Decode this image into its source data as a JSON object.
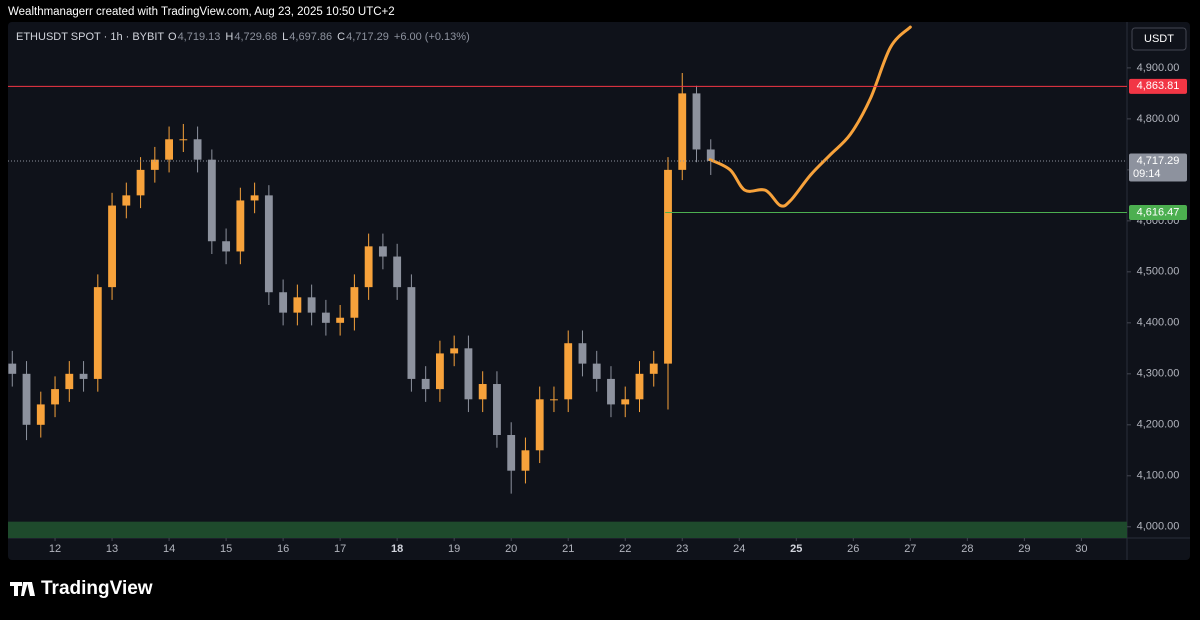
{
  "header": {
    "credit": "Wealthmanagerr created with TradingView.com, Aug 23, 2025 10:50 UTC+2"
  },
  "legend": {
    "symbol": "ETHUSDT SPOT · 1h · BYBIT",
    "ohlc": [
      {
        "key": "O",
        "value": "4,719.13"
      },
      {
        "key": "H",
        "value": "4,729.68"
      },
      {
        "key": "L",
        "value": "4,697.86"
      },
      {
        "key": "C",
        "value": "4,717.29"
      }
    ],
    "change": "+6.00 (+0.13%)"
  },
  "currency_button": "USDT",
  "logo": "TradingView",
  "chart_data": {
    "type": "candlestick",
    "up_color": "#f7a23b",
    "down_color": "#8d929e",
    "x": [
      11.25,
      11.5,
      11.75,
      12,
      12.25,
      12.5,
      12.75,
      13,
      13.25,
      13.5,
      13.75,
      14,
      14.25,
      14.5,
      14.75,
      15,
      15.25,
      15.5,
      15.75,
      16,
      16.25,
      16.5,
      16.75,
      17,
      17.25,
      17.5,
      17.75,
      18,
      18.25,
      18.5,
      18.75,
      19,
      19.25,
      19.5,
      19.75,
      20,
      20.25,
      20.5,
      20.75,
      21,
      21.25,
      21.5,
      21.75,
      22,
      22.25,
      22.5,
      22.75,
      23,
      23.25,
      23.5
    ],
    "open": [
      4320,
      4300,
      4200,
      4240,
      4270,
      4300,
      4290,
      4470,
      4630,
      4650,
      4700,
      4720,
      4760,
      4760,
      4720,
      4560,
      4540,
      4640,
      4650,
      4460,
      4420,
      4450,
      4420,
      4400,
      4410,
      4470,
      4550,
      4530,
      4470,
      4290,
      4270,
      4340,
      4350,
      4250,
      4280,
      4180,
      4110,
      4150,
      4250,
      4250,
      4360,
      4320,
      4290,
      4240,
      4250,
      4300,
      4320,
      4700,
      4850,
      4740
    ],
    "high": [
      4345,
      4325,
      4265,
      4295,
      4325,
      4325,
      4495,
      4655,
      4675,
      4725,
      4745,
      4785,
      4790,
      4785,
      4740,
      4585,
      4665,
      4675,
      4670,
      4485,
      4475,
      4475,
      4445,
      4435,
      4495,
      4575,
      4575,
      4555,
      4495,
      4315,
      4365,
      4375,
      4375,
      4305,
      4305,
      4205,
      4175,
      4275,
      4275,
      4385,
      4385,
      4345,
      4315,
      4275,
      4325,
      4345,
      4725,
      4890,
      4865,
      4760
    ],
    "low": [
      4275,
      4170,
      4175,
      4215,
      4245,
      4265,
      4265,
      4445,
      4605,
      4625,
      4675,
      4695,
      4735,
      4695,
      4535,
      4515,
      4515,
      4615,
      4435,
      4395,
      4395,
      4395,
      4375,
      4375,
      4385,
      4445,
      4505,
      4445,
      4265,
      4245,
      4245,
      4315,
      4225,
      4225,
      4155,
      4065,
      4085,
      4125,
      4225,
      4225,
      4295,
      4265,
      4215,
      4215,
      4225,
      4275,
      4230,
      4680,
      4715,
      4690
    ],
    "close": [
      4300,
      4200,
      4240,
      4270,
      4300,
      4290,
      4470,
      4630,
      4650,
      4700,
      4720,
      4760,
      4760,
      4720,
      4560,
      4540,
      4640,
      4650,
      4460,
      4420,
      4450,
      4420,
      4400,
      4410,
      4470,
      4550,
      4530,
      4470,
      4290,
      4270,
      4340,
      4350,
      4250,
      4280,
      4180,
      4110,
      4150,
      4250,
      4250,
      4360,
      4320,
      4290,
      4240,
      4250,
      4300,
      4320,
      4700,
      4850,
      4740,
      4717.29
    ],
    "forecast": {
      "color": "#f7a23b",
      "x": [
        23.49,
        23.84,
        24.1,
        24.46,
        24.72,
        24.9,
        25.25,
        25.6,
        25.95,
        26.3,
        26.65,
        27.0
      ],
      "values": [
        4720,
        4700,
        4660,
        4660,
        4630,
        4640,
        4690,
        4730,
        4770,
        4840,
        4940,
        4980
      ]
    },
    "levels": [
      {
        "value": 4863.81,
        "label": "4,863.81",
        "color": "#f23645",
        "from": 11.175,
        "style": "solid"
      },
      {
        "value": 4717.29,
        "label": "4,717.29",
        "color": "#8d929e",
        "from": 11.175,
        "style": "dotted",
        "countdown": "09:14"
      },
      {
        "value": 4616.47,
        "label": "4,616.47",
        "color": "#4caf50",
        "from": 22.7,
        "style": "solid"
      }
    ],
    "zone": {
      "from": 3978,
      "to": 4010,
      "color": "#1e4a2c"
    },
    "xlim": [
      11.175,
      30.8
    ],
    "xticks": [
      12,
      13,
      14,
      15,
      16,
      17,
      18,
      19,
      20,
      21,
      22,
      23,
      24,
      25,
      26,
      27,
      28,
      29,
      30
    ],
    "bold_xticks": [
      18,
      25
    ],
    "ylim": [
      3978,
      4990
    ],
    "yticks": [
      {
        "value": 4000,
        "label": "4,000.00"
      },
      {
        "value": 4100,
        "label": "4,100.00"
      },
      {
        "value": 4200,
        "label": "4,200.00"
      },
      {
        "value": 4300,
        "label": "4,300.00"
      },
      {
        "value": 4400,
        "label": "4,400.00"
      },
      {
        "value": 4500,
        "label": "4,500.00"
      },
      {
        "value": 4600,
        "label": "4,600.00"
      },
      {
        "value": 4700,
        "label": "4,700.00"
      },
      {
        "value": 4800,
        "label": "4,800.00"
      },
      {
        "value": 4900,
        "label": "4,900.00"
      }
    ]
  }
}
